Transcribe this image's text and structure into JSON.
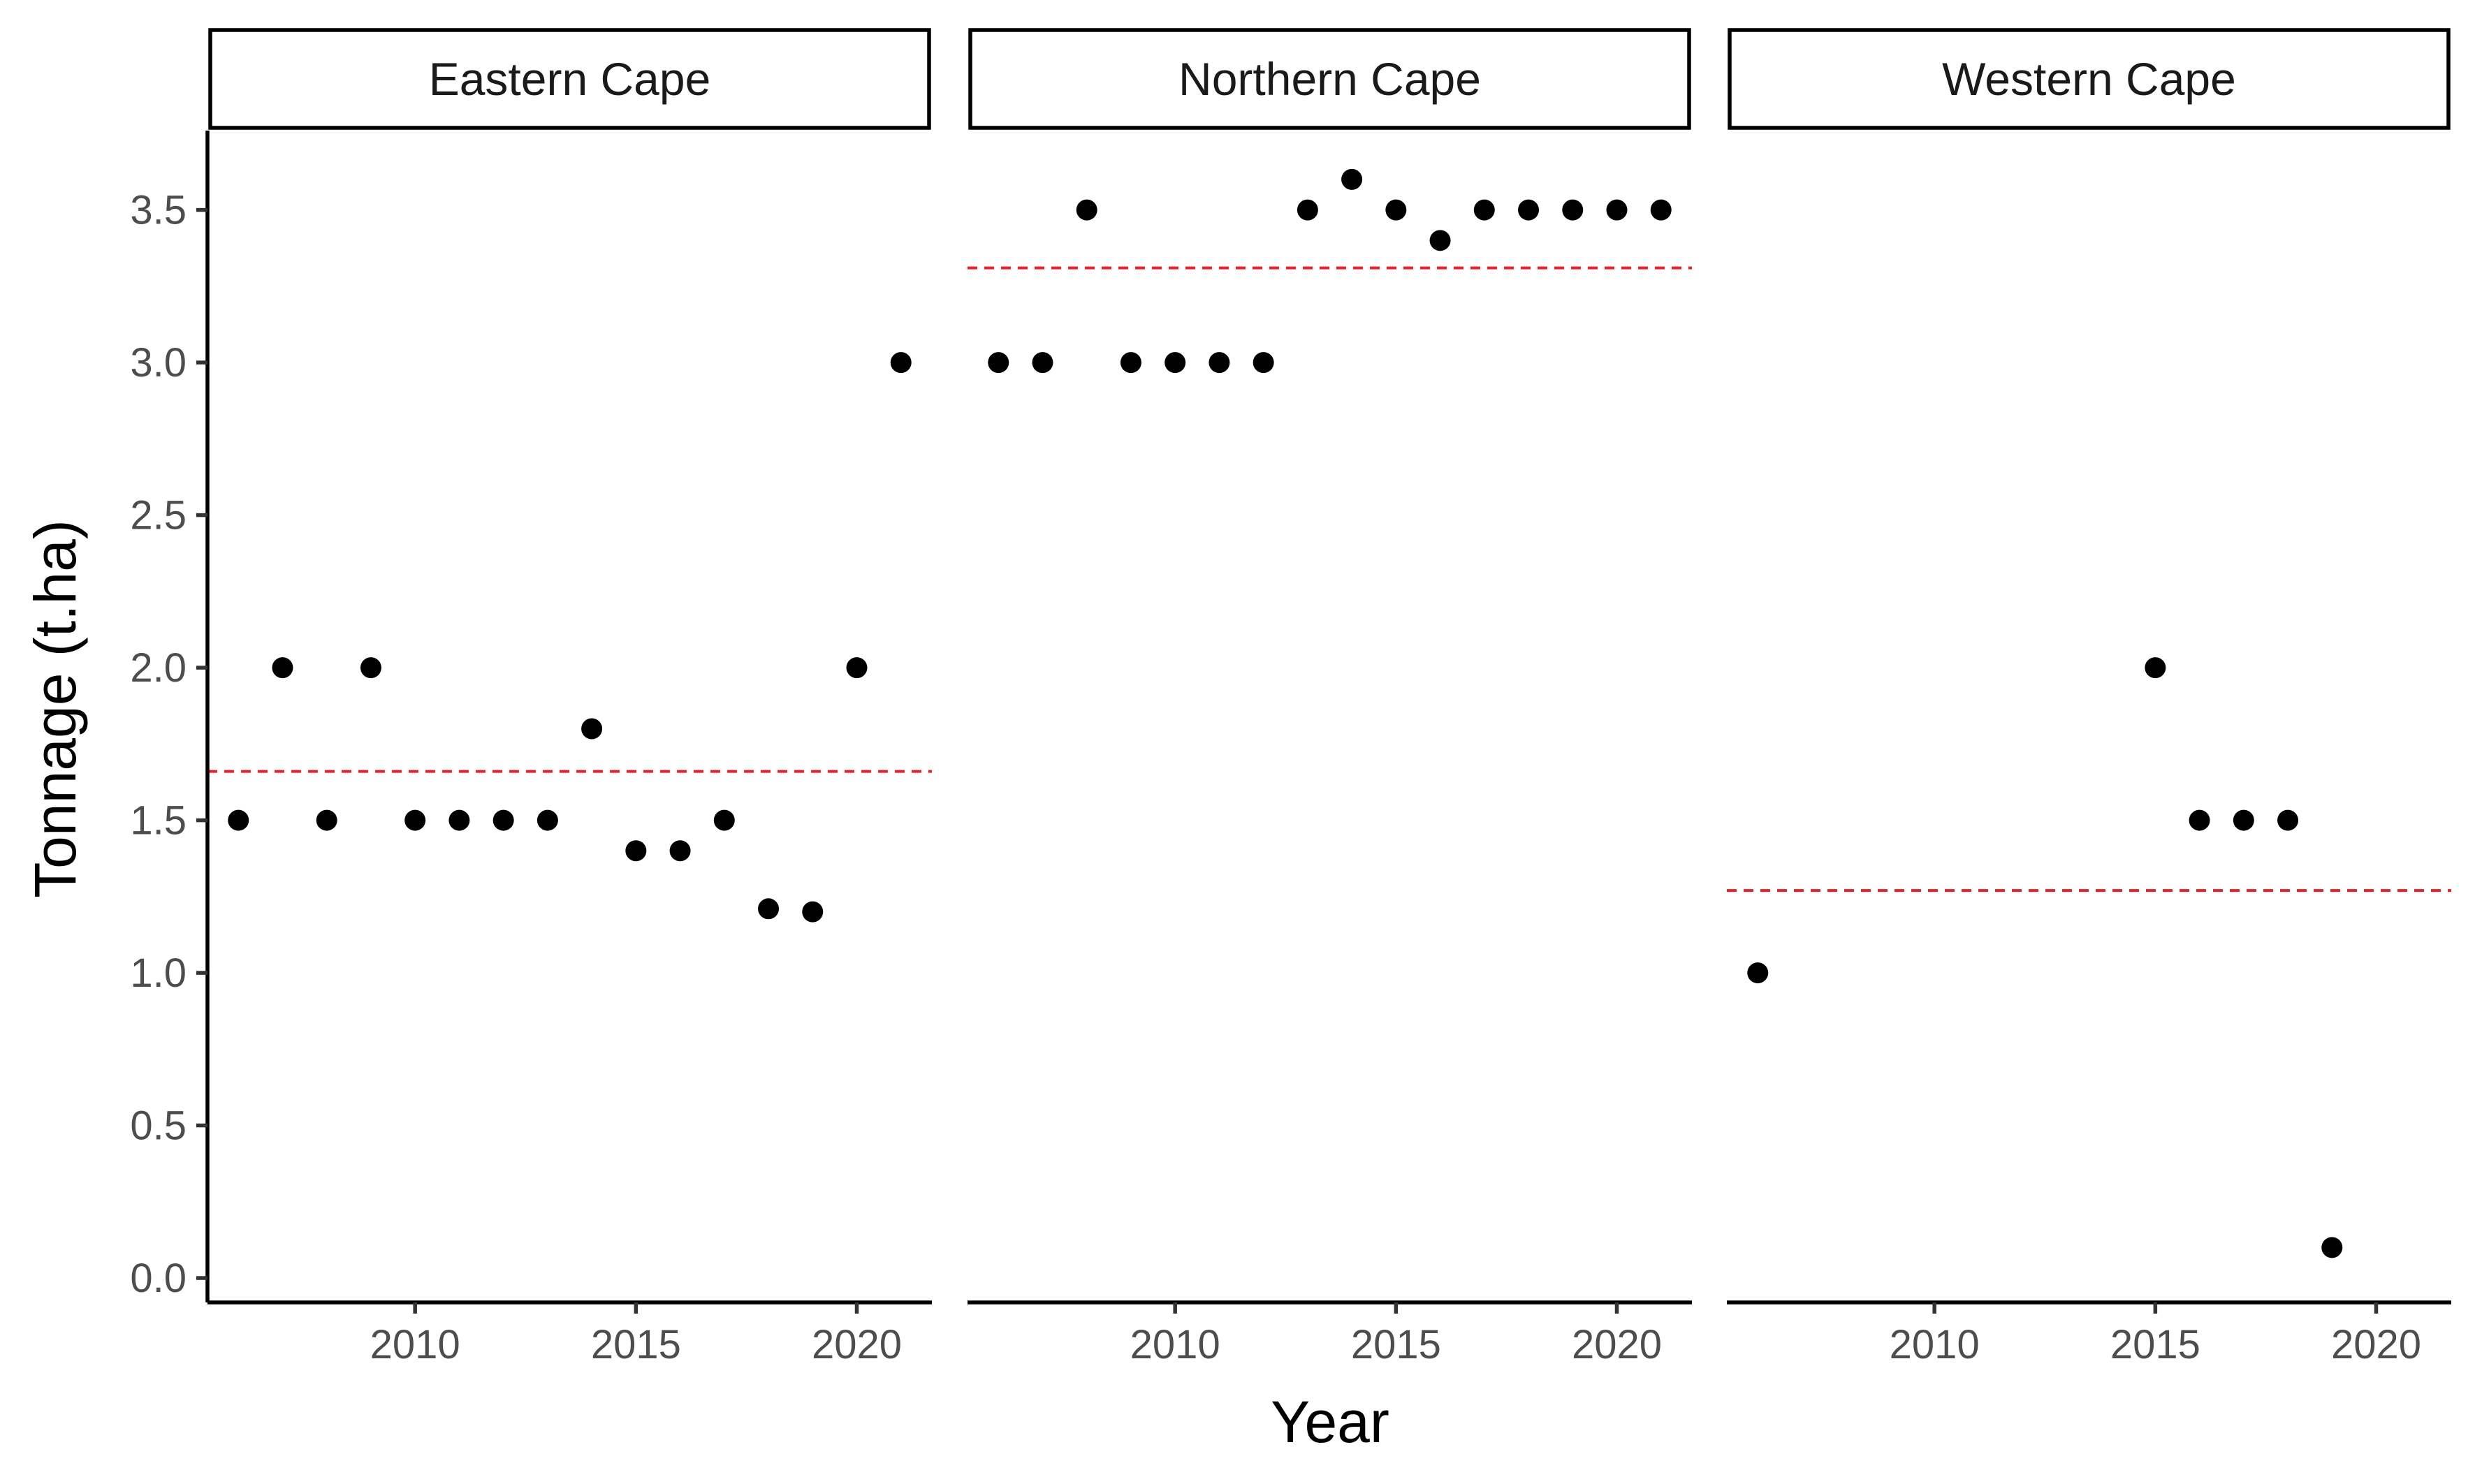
{
  "chart_data": {
    "type": "scatter",
    "facet_by": "Province",
    "xlabel": "Year",
    "ylabel": "Tonnage (t.ha)",
    "xlim": [
      2005.3,
      2021.7
    ],
    "ylim": [
      -0.08,
      3.76
    ],
    "x_ticks": [
      2010,
      2015,
      2020
    ],
    "y_ticks": [
      0.0,
      0.5,
      1.0,
      1.5,
      2.0,
      2.5,
      3.0,
      3.5
    ],
    "y_tick_labels": [
      "0.0",
      "0.5",
      "1.0",
      "1.5",
      "2.0",
      "2.5",
      "3.0",
      "3.5"
    ],
    "grid": false,
    "point_color": "#000000",
    "mean_line_color": "#e8202a",
    "mean_line_style": "dashed",
    "panels": [
      {
        "title": "Eastern Cape",
        "mean": 1.66,
        "x": [
          2006,
          2007,
          2008,
          2009,
          2010,
          2011,
          2012,
          2013,
          2014,
          2015,
          2016,
          2017,
          2018,
          2019,
          2020,
          2021
        ],
        "y": [
          1.5,
          2.0,
          1.5,
          2.0,
          1.5,
          1.5,
          1.5,
          1.5,
          1.8,
          1.4,
          1.4,
          1.5,
          1.21,
          1.2,
          2.0,
          3.0
        ]
      },
      {
        "title": "Northern Cape",
        "mean": 3.31,
        "x": [
          2006,
          2007,
          2008,
          2009,
          2010,
          2011,
          2012,
          2013,
          2014,
          2015,
          2016,
          2017,
          2018,
          2019,
          2020,
          2021
        ],
        "y": [
          3.0,
          3.0,
          3.5,
          3.0,
          3.0,
          3.0,
          3.0,
          3.5,
          3.6,
          3.5,
          3.4,
          3.5,
          3.5,
          3.5,
          3.5,
          3.5
        ]
      },
      {
        "title": "Western Cape",
        "mean": 1.27,
        "x": [
          2006,
          2015,
          2016,
          2017,
          2018,
          2019
        ],
        "y": [
          1.0,
          2.0,
          1.5,
          1.5,
          1.5,
          0.1
        ]
      }
    ]
  }
}
